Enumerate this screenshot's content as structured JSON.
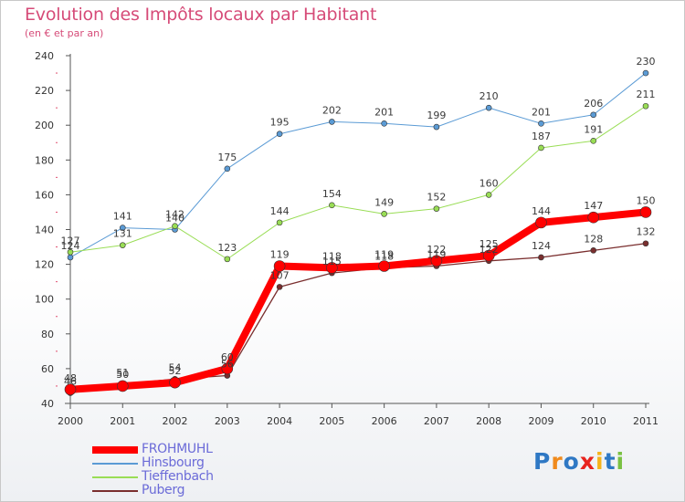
{
  "header": {
    "title": "Evolution des Impôts locaux par Habitant",
    "subtitle": "(en € et par an)"
  },
  "chart_data": {
    "type": "line",
    "title": "Evolution des Impôts locaux par Habitant",
    "subtitle": "(en € et par an)",
    "xlabel": "",
    "ylabel": "",
    "ylim": [
      40,
      240
    ],
    "yticks": [
      40,
      60,
      80,
      100,
      120,
      140,
      160,
      180,
      200,
      220,
      240
    ],
    "categories": [
      "2000",
      "2001",
      "2002",
      "2003",
      "2004",
      "2005",
      "2006",
      "2007",
      "2008",
      "2009",
      "2010",
      "2011"
    ],
    "grid": false,
    "legend_position": "bottom-left",
    "series": [
      {
        "name": "FROHMUHL",
        "color": "#ff0000",
        "values": [
          48,
          50,
          52,
          60,
          119,
          118,
          119,
          122,
          125,
          144,
          147,
          150
        ],
        "labels": [
          "48",
          "50",
          "52",
          "60",
          "119",
          "118",
          "119",
          "122",
          "125",
          "144",
          "147",
          "150"
        ]
      },
      {
        "name": "Hinsbourg",
        "color": "#5b9bd5",
        "values": [
          124,
          141,
          140,
          175,
          195,
          202,
          201,
          199,
          210,
          201,
          206,
          230
        ],
        "labels": [
          "124",
          "141",
          "140",
          "175",
          "195",
          "202",
          "201",
          "199",
          "210",
          "201",
          "206",
          "230"
        ]
      },
      {
        "name": "Tieffenbach",
        "color": "#99dd55",
        "values": [
          127,
          131,
          142,
          123,
          144,
          154,
          149,
          152,
          160,
          187,
          191,
          211
        ],
        "labels": [
          "127",
          "131",
          "142",
          "123",
          "144",
          "154",
          "149",
          "152",
          "160",
          "187",
          "191",
          "211"
        ]
      },
      {
        "name": "Puberg",
        "color": "#7a2e2e",
        "values": [
          46,
          51,
          54,
          56,
          107,
          115,
          118,
          119,
          122,
          124,
          128,
          132
        ],
        "labels": [
          "46",
          "51",
          "54",
          "56",
          "107",
          "115",
          "118",
          "119",
          "122",
          "124",
          "128",
          "132"
        ]
      }
    ]
  },
  "legend": {
    "items": [
      {
        "label": "FROHMUHL",
        "color": "#ff0000"
      },
      {
        "label": "Hinsbourg",
        "color": "#5b9bd5"
      },
      {
        "label": "Tieffenbach",
        "color": "#99dd55"
      },
      {
        "label": "Puberg",
        "color": "#7a2e2e"
      }
    ]
  },
  "logo": {
    "letters": [
      {
        "char": "P",
        "color": "#2f78c4"
      },
      {
        "char": "r",
        "color": "#f08a1c"
      },
      {
        "char": "o",
        "color": "#2f78c4"
      },
      {
        "char": "x",
        "color": "#e8231e"
      },
      {
        "char": "i",
        "color": "#f6b21a"
      },
      {
        "char": "t",
        "color": "#2f78c4"
      },
      {
        "char": "i",
        "color": "#7ac143"
      }
    ]
  }
}
